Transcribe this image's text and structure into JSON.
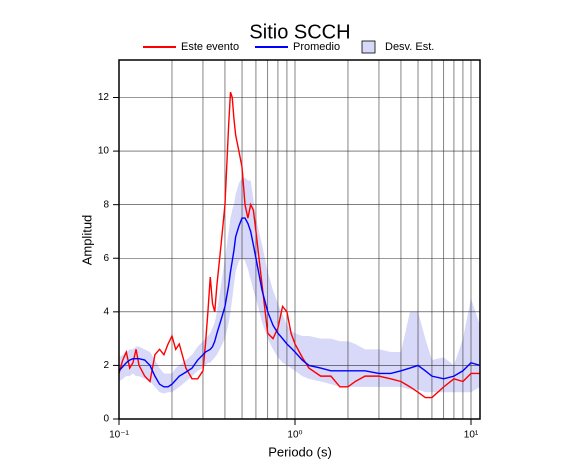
{
  "chart_data": {
    "type": "line",
    "title": "Sitio SCCH",
    "xlabel": "Periodo (s)",
    "ylabel": "Amplitud",
    "xscale": "log",
    "xlim": [
      0.1,
      11.25
    ],
    "ylim": [
      0,
      13.4
    ],
    "xticks": [
      {
        "value": 0.1,
        "label": "10⁻¹"
      },
      {
        "value": 1,
        "label": "10⁰"
      },
      {
        "value": 10,
        "label": "10¹"
      }
    ],
    "xminorticks": [
      0.2,
      0.3,
      0.4,
      0.5,
      0.6,
      0.7,
      0.8,
      0.9,
      2,
      3,
      4,
      5,
      6,
      7,
      8,
      9
    ],
    "yticks": [
      0,
      2,
      4,
      6,
      8,
      10,
      12
    ],
    "grid": true,
    "legend": "top",
    "x": [
      0.1,
      0.105,
      0.11,
      0.115,
      0.12,
      0.125,
      0.13,
      0.14,
      0.15,
      0.16,
      0.17,
      0.18,
      0.19,
      0.2,
      0.21,
      0.22,
      0.24,
      0.26,
      0.28,
      0.3,
      0.31,
      0.32,
      0.33,
      0.34,
      0.35,
      0.36,
      0.38,
      0.4,
      0.42,
      0.43,
      0.44,
      0.45,
      0.46,
      0.48,
      0.5,
      0.52,
      0.54,
      0.56,
      0.58,
      0.6,
      0.65,
      0.7,
      0.75,
      0.8,
      0.85,
      0.9,
      0.95,
      1.0,
      1.1,
      1.2,
      1.4,
      1.6,
      1.8,
      2.0,
      2.2,
      2.5,
      3.0,
      3.5,
      4.0,
      4.5,
      5.0,
      5.5,
      6.0,
      7.0,
      8.0,
      9.0,
      10,
      11.25
    ],
    "series": [
      {
        "name": "Este evento",
        "color": "#ff0000",
        "kind": "line",
        "values": [
          1.7,
          2.2,
          2.5,
          1.9,
          2.1,
          2.6,
          2.0,
          1.6,
          1.4,
          2.4,
          2.6,
          2.4,
          2.8,
          3.1,
          2.6,
          2.8,
          1.9,
          1.5,
          1.5,
          1.8,
          2.8,
          4.0,
          5.3,
          4.3,
          4.0,
          5.0,
          6.5,
          8.0,
          11.0,
          12.2,
          12.0,
          11.2,
          10.6,
          10.0,
          9.4,
          8.0,
          7.5,
          8.0,
          7.8,
          7.0,
          5.0,
          3.2,
          3.0,
          3.4,
          4.2,
          4.0,
          3.2,
          2.8,
          2.3,
          1.9,
          1.6,
          1.6,
          1.2,
          1.2,
          1.4,
          1.6,
          1.6,
          1.5,
          1.4,
          1.2,
          1.0,
          0.8,
          0.8,
          1.2,
          1.5,
          1.4,
          1.7,
          1.7
        ]
      },
      {
        "name": "Promedio",
        "color": "#0000ff",
        "kind": "line",
        "values": [
          1.8,
          1.95,
          2.1,
          2.2,
          2.25,
          2.25,
          2.25,
          2.2,
          2.0,
          1.6,
          1.3,
          1.2,
          1.2,
          1.3,
          1.45,
          1.6,
          1.75,
          1.9,
          2.2,
          2.4,
          2.5,
          2.55,
          2.6,
          2.7,
          2.9,
          3.2,
          3.7,
          4.2,
          5.0,
          5.5,
          5.9,
          6.3,
          6.8,
          7.2,
          7.5,
          7.5,
          7.3,
          7.0,
          6.5,
          6.0,
          4.8,
          4.0,
          3.5,
          3.2,
          3.0,
          2.8,
          2.65,
          2.5,
          2.2,
          2.0,
          1.9,
          1.8,
          1.8,
          1.8,
          1.8,
          1.8,
          1.7,
          1.7,
          1.8,
          1.9,
          2.0,
          1.8,
          1.6,
          1.5,
          1.6,
          1.8,
          2.1,
          2.0
        ]
      },
      {
        "name": "Desv. Est.",
        "color": "#d8d8f8",
        "kind": "band",
        "lower": [
          1.4,
          1.5,
          1.6,
          1.6,
          1.7,
          1.6,
          1.6,
          1.5,
          1.4,
          1.2,
          1.0,
          0.95,
          1.0,
          1.0,
          1.1,
          1.2,
          1.4,
          1.6,
          1.8,
          1.9,
          2.0,
          2.1,
          2.1,
          2.2,
          2.3,
          2.4,
          2.7,
          3.0,
          3.6,
          4.0,
          4.5,
          5.0,
          5.5,
          5.9,
          6.0,
          5.9,
          5.6,
          5.2,
          4.8,
          4.5,
          3.6,
          3.0,
          2.6,
          2.3,
          2.1,
          2.0,
          1.9,
          1.8,
          1.6,
          1.5,
          1.4,
          1.3,
          1.2,
          1.2,
          1.2,
          1.2,
          1.2,
          1.2,
          1.2,
          1.1,
          1.1,
          1.0,
          1.0,
          1.0,
          1.0,
          1.0,
          1.0,
          1.2
        ],
        "upper": [
          2.3,
          2.4,
          2.5,
          2.6,
          2.6,
          2.7,
          2.7,
          2.6,
          2.5,
          2.2,
          1.9,
          1.7,
          1.7,
          1.7,
          1.9,
          2.0,
          2.2,
          2.4,
          2.7,
          2.9,
          3.0,
          3.1,
          3.2,
          3.4,
          3.6,
          4.0,
          5.0,
          6.0,
          7.0,
          7.5,
          7.8,
          8.0,
          8.4,
          8.8,
          9.0,
          9.0,
          8.9,
          8.9,
          8.2,
          7.5,
          6.5,
          5.5,
          4.8,
          4.3,
          3.9,
          3.5,
          3.3,
          3.2,
          3.1,
          3.1,
          3.0,
          3.0,
          2.9,
          2.9,
          2.8,
          2.6,
          2.6,
          2.5,
          2.5,
          4.0,
          4.0,
          3.0,
          2.2,
          2.3,
          2.0,
          3.0,
          4.5,
          3.5
        ]
      }
    ]
  }
}
